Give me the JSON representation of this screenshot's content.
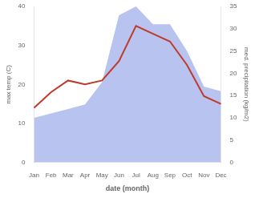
{
  "chart_data": {
    "type": "line",
    "xlabel": "date (month)",
    "ylabel": "max temp (C)",
    "y2label": "med. precipitation (kg/m2)",
    "categories": [
      "Jan",
      "Feb",
      "Mar",
      "Apr",
      "May",
      "Jun",
      "Jul",
      "Aug",
      "Sep",
      "Oct",
      "Nov",
      "Dec"
    ],
    "series": [
      {
        "type": "area",
        "axis": "y2",
        "color": "#b8c4ef",
        "values": [
          10,
          11,
          12,
          13,
          18,
          33,
          35,
          31,
          31,
          25,
          17,
          16
        ]
      },
      {
        "type": "line",
        "color": "#c0392b",
        "values": [
          14,
          18,
          21,
          20,
          21,
          26,
          35,
          33,
          31,
          25,
          17,
          15
        ]
      }
    ],
    "ylim": [
      0,
      40
    ],
    "yticks": [
      0,
      10,
      20,
      30,
      40
    ],
    "y2lim": [
      0,
      35
    ],
    "y2ticks": [
      0,
      5,
      10,
      15,
      20,
      25,
      30,
      35
    ],
    "grid": false
  }
}
